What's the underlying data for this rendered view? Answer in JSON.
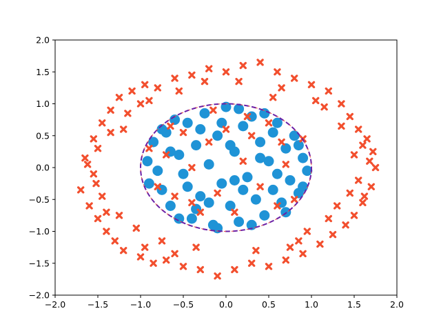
{
  "chart_data": {
    "type": "scatter",
    "title": "",
    "xlabel": "",
    "ylabel": "",
    "xlim": [
      -2.0,
      2.0
    ],
    "ylim": [
      -2.0,
      2.0
    ],
    "grid": false,
    "legend": "none",
    "x_ticks": [
      "−2.0",
      "−1.5",
      "−1.0",
      "−0.5",
      "0.0",
      "0.5",
      "1.0",
      "1.5",
      "2.0"
    ],
    "y_ticks": [
      "−2.0",
      "−1.5",
      "−1.0",
      "−0.5",
      "0.0",
      "0.5",
      "1.0",
      "1.5",
      "2.0"
    ],
    "colors": {
      "inner_points": "#1f93d6",
      "outer_points": "#f24f2e",
      "boundary": "#6a1fa6",
      "boundary_dash": "#e8554e"
    },
    "boundary": {
      "shape": "ellipse",
      "center": [
        0.0,
        0.0
      ],
      "rx": 1.0,
      "ry": 1.0,
      "style": "dashed"
    },
    "series": [
      {
        "marker": "circle",
        "points": [
          [
            -0.92,
            0.1
          ],
          [
            -0.85,
            0.4
          ],
          [
            -0.75,
            -0.35
          ],
          [
            -0.7,
            0.55
          ],
          [
            -0.65,
            -0.6
          ],
          [
            -0.55,
            0.2
          ],
          [
            -0.5,
            -0.1
          ],
          [
            -0.45,
            0.7
          ],
          [
            -0.4,
            -0.8
          ],
          [
            -0.35,
            0.35
          ],
          [
            -0.3,
            -0.45
          ],
          [
            -0.25,
            0.85
          ],
          [
            -0.2,
            0.05
          ],
          [
            -0.15,
            -0.9
          ],
          [
            -0.1,
            0.5
          ],
          [
            -0.05,
            -0.25
          ],
          [
            0.0,
            0.95
          ],
          [
            0.05,
            -0.6
          ],
          [
            0.1,
            0.25
          ],
          [
            0.15,
            -0.85
          ],
          [
            0.2,
            0.65
          ],
          [
            0.25,
            -0.15
          ],
          [
            0.3,
            0.8
          ],
          [
            0.35,
            -0.5
          ],
          [
            0.4,
            0.4
          ],
          [
            0.45,
            -0.75
          ],
          [
            0.5,
            0.1
          ],
          [
            0.55,
            -0.35
          ],
          [
            0.6,
            0.7
          ],
          [
            0.65,
            -0.55
          ],
          [
            0.7,
            0.3
          ],
          [
            0.75,
            -0.2
          ],
          [
            0.8,
            0.5
          ],
          [
            0.85,
            -0.4
          ],
          [
            0.9,
            0.15
          ],
          [
            0.95,
            -0.05
          ],
          [
            -0.8,
            -0.05
          ],
          [
            -0.6,
            0.75
          ],
          [
            -0.35,
            -0.65
          ],
          [
            0.15,
            0.92
          ],
          [
            0.45,
            0.85
          ],
          [
            0.7,
            -0.7
          ],
          [
            -0.2,
            -0.55
          ],
          [
            0.05,
            0.35
          ],
          [
            -0.65,
            0.25
          ],
          [
            0.3,
            -0.9
          ],
          [
            0.85,
            0.35
          ],
          [
            -0.45,
            -0.3
          ],
          [
            0.55,
            0.55
          ],
          [
            -0.1,
            -0.95
          ],
          [
            -0.9,
            -0.25
          ],
          [
            0.6,
            -0.1
          ],
          [
            -0.3,
            0.6
          ],
          [
            0.2,
            -0.35
          ],
          [
            -0.75,
            0.6
          ],
          [
            0.9,
            -0.3
          ],
          [
            -0.55,
            -0.8
          ],
          [
            0.4,
            0.15
          ],
          [
            -0.05,
            0.7
          ],
          [
            0.1,
            -0.2
          ]
        ]
      },
      {
        "marker": "x",
        "points": [
          [
            -0.9,
            0.3
          ],
          [
            -0.8,
            -0.3
          ],
          [
            -0.7,
            0.2
          ],
          [
            -0.6,
            -0.45
          ],
          [
            -0.5,
            0.55
          ],
          [
            -0.4,
            0.0
          ],
          [
            -0.3,
            -0.7
          ],
          [
            -0.2,
            0.4
          ],
          [
            -0.1,
            -0.4
          ],
          [
            0.0,
            0.6
          ],
          [
            0.1,
            -0.7
          ],
          [
            0.2,
            0.1
          ],
          [
            0.3,
            0.5
          ],
          [
            0.4,
            -0.3
          ],
          [
            0.5,
            0.7
          ],
          [
            0.6,
            -0.6
          ],
          [
            0.7,
            0.05
          ],
          [
            0.8,
            -0.5
          ],
          [
            0.9,
            0.45
          ],
          [
            -0.65,
            0.65
          ],
          [
            0.25,
            0.8
          ],
          [
            -0.15,
            0.9
          ],
          [
            0.65,
            0.4
          ],
          [
            -0.4,
            -0.55
          ],
          [
            -1.7,
            -0.35
          ],
          [
            -1.65,
            0.15
          ],
          [
            -1.6,
            -0.6
          ],
          [
            -1.55,
            0.45
          ],
          [
            -1.5,
            -0.8
          ],
          [
            -1.45,
            0.7
          ],
          [
            -1.4,
            -1.0
          ],
          [
            -1.35,
            0.9
          ],
          [
            -1.3,
            -1.15
          ],
          [
            -1.25,
            1.1
          ],
          [
            -1.2,
            -1.3
          ],
          [
            -1.1,
            1.2
          ],
          [
            -1.0,
            -1.4
          ],
          [
            -0.95,
            1.3
          ],
          [
            -0.85,
            -1.5
          ],
          [
            -0.8,
            1.25
          ],
          [
            -0.7,
            -1.45
          ],
          [
            -0.6,
            1.4
          ],
          [
            -0.5,
            -1.55
          ],
          [
            -0.4,
            1.45
          ],
          [
            -0.3,
            -1.6
          ],
          [
            -0.2,
            1.55
          ],
          [
            -0.1,
            -1.7
          ],
          [
            0.0,
            1.5
          ],
          [
            0.1,
            -1.6
          ],
          [
            0.2,
            1.6
          ],
          [
            0.3,
            -1.5
          ],
          [
            0.4,
            1.65
          ],
          [
            0.5,
            -1.55
          ],
          [
            0.6,
            1.5
          ],
          [
            0.7,
            -1.45
          ],
          [
            0.8,
            1.4
          ],
          [
            0.9,
            -1.35
          ],
          [
            1.0,
            1.3
          ],
          [
            1.1,
            -1.2
          ],
          [
            1.2,
            1.2
          ],
          [
            1.25,
            -1.05
          ],
          [
            1.35,
            1.0
          ],
          [
            1.4,
            -0.9
          ],
          [
            1.45,
            0.8
          ],
          [
            1.5,
            -0.75
          ],
          [
            1.55,
            0.6
          ],
          [
            1.6,
            -0.55
          ],
          [
            1.65,
            0.45
          ],
          [
            1.7,
            -0.3
          ],
          [
            1.72,
            0.25
          ],
          [
            1.75,
            0.0
          ],
          [
            1.68,
            0.1
          ],
          [
            -1.55,
            -0.1
          ],
          [
            -1.5,
            0.3
          ],
          [
            -1.45,
            -0.45
          ],
          [
            -1.35,
            0.55
          ],
          [
            -1.25,
            -0.75
          ],
          [
            -1.15,
            0.85
          ],
          [
            -1.05,
            -0.95
          ],
          [
            -0.9,
            1.05
          ],
          [
            -0.75,
            -1.15
          ],
          [
            -0.55,
            1.2
          ],
          [
            -0.35,
            -1.25
          ],
          [
            0.15,
            1.35
          ],
          [
            0.35,
            -1.3
          ],
          [
            0.65,
            1.25
          ],
          [
            0.85,
            -1.15
          ],
          [
            1.05,
            1.05
          ],
          [
            1.2,
            -0.8
          ],
          [
            1.35,
            0.65
          ],
          [
            1.45,
            -0.4
          ],
          [
            1.5,
            0.2
          ],
          [
            1.6,
            0.35
          ],
          [
            1.55,
            -0.2
          ],
          [
            -1.62,
            0.05
          ],
          [
            -1.4,
            -0.7
          ],
          [
            -0.95,
            -1.25
          ],
          [
            -0.6,
            -1.35
          ],
          [
            0.55,
            1.1
          ],
          [
            1.15,
            0.95
          ],
          [
            1.3,
            -0.6
          ],
          [
            -1.2,
            0.6
          ],
          [
            -1.0,
            1.0
          ],
          [
            0.95,
            -1.0
          ],
          [
            1.62,
            -0.45
          ],
          [
            -1.52,
            -0.25
          ],
          [
            0.75,
            -1.25
          ],
          [
            -0.25,
            1.35
          ]
        ]
      }
    ]
  }
}
